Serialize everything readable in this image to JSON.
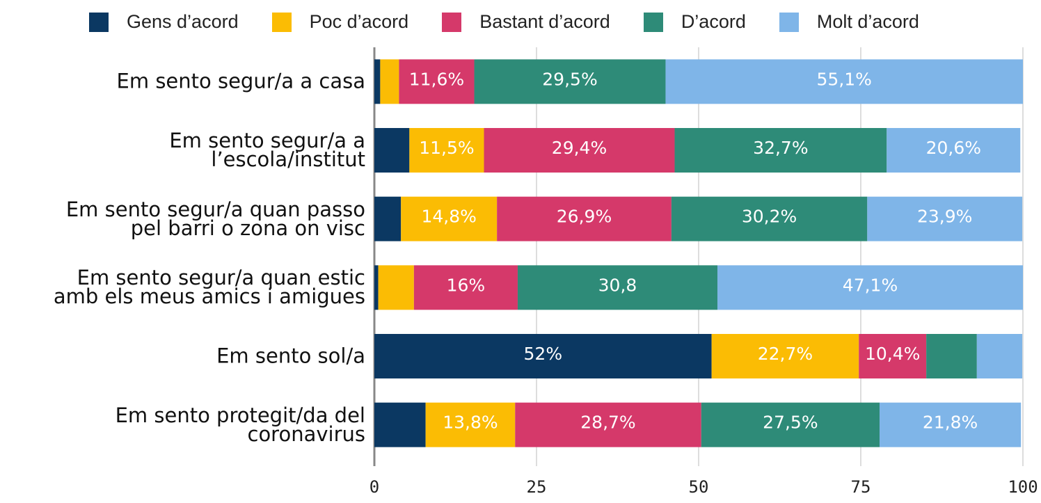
{
  "chart_data": {
    "type": "stacked_barh",
    "categories": [
      "Em sento segur/a a casa",
      "Em sento segur/a a\nl’escola/institut",
      "Em sento segur/a quan passo\npel barri o zona on visc",
      "Em sento segur/a quan estic\namb els meus amics i amigues",
      "Em sento sol/a",
      "Em sento protegit/da del\ncoronavirus"
    ],
    "series": [
      {
        "name": "Gens d’acord",
        "color": "#0b3862",
        "values": [
          0.9,
          5.4,
          4.1,
          0.6,
          52,
          7.9
        ],
        "value_labels": [
          null,
          null,
          null,
          null,
          "52%",
          null
        ]
      },
      {
        "name": "Poc d’acord",
        "color": "#fbbc04",
        "values": [
          2.9,
          11.5,
          14.8,
          5.5,
          22.7,
          13.8
        ],
        "value_labels": [
          null,
          "11,5%",
          "14,8%",
          null,
          "22,7%",
          "13,8%"
        ]
      },
      {
        "name": "Bastant d’acord",
        "color": "#d5396a",
        "values": [
          11.6,
          29.4,
          26.9,
          16,
          10.4,
          28.7
        ],
        "value_labels": [
          "11,6%",
          "29,4%",
          "26,9%",
          "16%",
          "10,4%",
          "28,7%"
        ]
      },
      {
        "name": "D’acord",
        "color": "#2e8b78",
        "values": [
          29.5,
          32.7,
          30.2,
          30.8,
          7.8,
          27.5
        ],
        "value_labels": [
          "29,5%",
          "32,7%",
          "30,2%",
          "30,8",
          null,
          "27,5%"
        ]
      },
      {
        "name": "Molt d’acord",
        "color": "#7fb5e8",
        "values": [
          55.1,
          20.6,
          23.9,
          47.1,
          7.0,
          21.8
        ],
        "value_labels": [
          "55,1%",
          "20,6%",
          "23,9%",
          "47,1%",
          null,
          "21,8%"
        ]
      }
    ],
    "xlim": [
      0,
      100
    ],
    "xticks": [
      0,
      25,
      50,
      75,
      100
    ],
    "grid": true,
    "legend": "top"
  }
}
